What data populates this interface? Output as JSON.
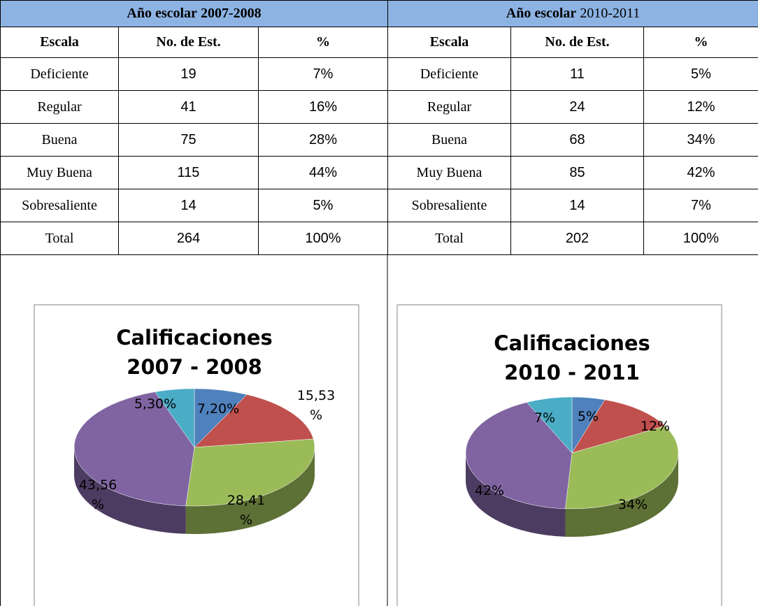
{
  "table": {
    "sections": [
      {
        "title": "Año escolar",
        "year": "2007-2008",
        "columns": [
          "Escala",
          "No. de Est.",
          "%"
        ],
        "rows": [
          [
            "Deficiente",
            "19",
            "7%"
          ],
          [
            "Regular",
            "41",
            "16%"
          ],
          [
            "Buena",
            "75",
            "28%"
          ],
          [
            "Muy Buena",
            "115",
            "44%"
          ],
          [
            "Sobresaliente",
            "14",
            "5%"
          ],
          [
            "Total",
            "264",
            "100%"
          ]
        ]
      },
      {
        "title": "Año escolar",
        "year": "2010-2011",
        "columns": [
          "Escala",
          "No. de Est.",
          "%"
        ],
        "rows": [
          [
            "Deficiente",
            "11",
            "5%"
          ],
          [
            "Regular",
            "24",
            "12%"
          ],
          [
            "Buena",
            "68",
            "34%"
          ],
          [
            "Muy Buena",
            "85",
            "42%"
          ],
          [
            "Sobresaliente",
            "14",
            "7%"
          ],
          [
            "Total",
            "202",
            "100%"
          ]
        ]
      }
    ]
  },
  "chart_data": [
    {
      "type": "pie",
      "title": "Calificaciones\n2007 - 2008",
      "values": [
        7.2,
        15.53,
        28.41,
        43.56,
        5.3
      ],
      "value_labels": [
        "7,20%",
        "15,53\n%",
        "28,41\n%",
        "43,56\n%",
        "5,30%"
      ],
      "colors": [
        "#4f81bd",
        "#c0504d",
        "#9bbb59",
        "#8064a2",
        "#4bacc6"
      ]
    },
    {
      "type": "pie",
      "title": "Calificaciones\n2010 - 2011",
      "values": [
        5,
        12,
        34,
        42,
        7
      ],
      "value_labels": [
        "5%",
        "12%",
        "34%",
        "42%",
        "7%"
      ],
      "colors": [
        "#4f81bd",
        "#c0504d",
        "#9bbb59",
        "#8064a2",
        "#4bacc6"
      ]
    }
  ]
}
